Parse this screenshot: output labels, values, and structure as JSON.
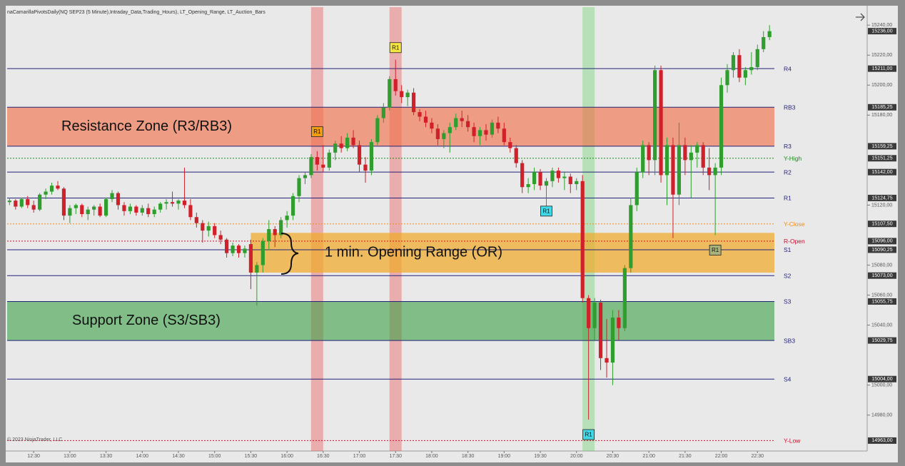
{
  "chart_data": {
    "type": "candlestick",
    "header": "naCamarillaPivotsDaily(NQ SEP23 (5 Minute),Intraday_Data,Trading_Hours), LT_Opening_Range, LT_Auction_Bars",
    "copyright": "© 2023 NinjaTrader, LLC",
    "up_color": "#2f9e2f",
    "down_color": "#d0202a",
    "xlim": [
      "12:08",
      "23:58"
    ],
    "xticks": [
      "12:30",
      "13:00",
      "13:30",
      "14:00",
      "14:30",
      "15:00",
      "15:30",
      "16:00",
      "16:30",
      "17:00",
      "17:30",
      "18:00",
      "18:30",
      "19:00",
      "19:30",
      "20:00",
      "20:30",
      "21:00",
      "21:30",
      "22:00",
      "22:30"
    ],
    "ylim": [
      14957,
      15252
    ],
    "yticks": [
      {
        "value": 15240,
        "label": "15240,00"
      },
      {
        "value": 15220,
        "label": "15220,00"
      },
      {
        "value": 15200,
        "label": "15200,00"
      },
      {
        "value": 15180,
        "label": "15180,00"
      },
      {
        "value": 15120,
        "label": "15120,00"
      },
      {
        "value": 15080,
        "label": "15080,00"
      },
      {
        "value": 15060,
        "label": "15060,00"
      },
      {
        "value": 15040,
        "label": "15040,00"
      },
      {
        "value": 15000,
        "label": "15000,00"
      },
      {
        "value": 14980,
        "label": "14980,00"
      }
    ],
    "last_price": {
      "value": 15236,
      "label": "15236,00"
    },
    "levels": [
      {
        "name": "R4",
        "value": 15211,
        "label": "15211,00",
        "color": "#23237a",
        "dashed": false
      },
      {
        "name": "RB3",
        "value": 15185.25,
        "label": "15185,25",
        "color": "#23237a",
        "dashed": false
      },
      {
        "name": "R3",
        "value": 15159.25,
        "label": "15159,25",
        "color": "#23237a",
        "dashed": false
      },
      {
        "name": "Y-High",
        "value": 15151.25,
        "label": "15151,25",
        "color": "#1a8a1a",
        "dashed": true
      },
      {
        "name": "R2",
        "value": 15142,
        "label": "15142,00",
        "color": "#23237a",
        "dashed": false
      },
      {
        "name": "R1",
        "value": 15124.75,
        "label": "15124,75",
        "color": "#23237a",
        "dashed": false
      },
      {
        "name": "Y-Close",
        "value": 15107.5,
        "label": "15107,50",
        "color": "#f08c1a",
        "dashed": true
      },
      {
        "name": "R-Open",
        "value": 15096,
        "label": "15096,00",
        "color": "#c8102e",
        "dashed": true
      },
      {
        "name": "S1",
        "value": 15090.25,
        "label": "15090,25",
        "color": "#23237a",
        "dashed": false
      },
      {
        "name": "S2",
        "value": 15073,
        "label": "15073,00",
        "color": "#23237a",
        "dashed": false
      },
      {
        "name": "S3",
        "value": 15055.75,
        "label": "15055,75",
        "color": "#23237a",
        "dashed": false
      },
      {
        "name": "SB3",
        "value": 15029.75,
        "label": "15029,75",
        "color": "#23237a",
        "dashed": false
      },
      {
        "name": "S4",
        "value": 15004,
        "label": "15004,00",
        "color": "#23237a",
        "dashed": false
      },
      {
        "name": "Y-Low",
        "value": 14963,
        "label": "14963,00",
        "color": "#c8102e",
        "dashed": true
      }
    ],
    "zones": [
      {
        "label": "Resistance Zone (R3/RB3)",
        "from": 15159.25,
        "to": 15185.25,
        "color": "rgba(240,110,70,0.62)",
        "start": "12:08"
      },
      {
        "label": "1 min. Opening Range (OR)",
        "from": 15075,
        "to": 15101.5,
        "color": "rgba(240,170,40,0.72)",
        "start": "15:30"
      },
      {
        "label": "Support Zone (S3/SB3)",
        "from": 15029.75,
        "to": 15055.75,
        "color": "rgba(60,160,70,0.6)",
        "start": "12:08"
      }
    ],
    "bands": [
      {
        "x": "16:25",
        "color": "rgba(235,90,90,0.42)"
      },
      {
        "x": "17:30",
        "color": "rgba(235,90,90,0.42)"
      },
      {
        "x": "20:10",
        "color": "rgba(110,210,110,0.4)"
      }
    ],
    "signals": [
      {
        "x": "16:25",
        "price": 15169,
        "label": "R1",
        "color": "#f39c12"
      },
      {
        "x": "17:30",
        "price": 15225,
        "label": "R1",
        "color": "#f5e642"
      },
      {
        "x": "19:35",
        "price": 15116,
        "label": "R1",
        "color": "#3fd9e8"
      },
      {
        "x": "20:10",
        "price": 14967,
        "label": "R1",
        "color": "#3fd9e8"
      },
      {
        "x": "21:55",
        "price": 15090,
        "label": "R1",
        "color": "#a8b27a"
      }
    ],
    "x": [
      "12:10",
      "12:15",
      "12:20",
      "12:25",
      "12:30",
      "12:35",
      "12:40",
      "12:45",
      "12:50",
      "12:55",
      "13:00",
      "13:05",
      "13:10",
      "13:15",
      "13:20",
      "13:25",
      "13:30",
      "13:35",
      "13:40",
      "13:45",
      "13:50",
      "13:55",
      "14:00",
      "14:05",
      "14:10",
      "14:15",
      "14:20",
      "14:25",
      "14:30",
      "14:35",
      "14:40",
      "14:45",
      "14:50",
      "14:55",
      "15:00",
      "15:05",
      "15:10",
      "15:15",
      "15:20",
      "15:25",
      "15:30",
      "15:35",
      "15:40",
      "15:45",
      "15:50",
      "15:55",
      "16:00",
      "16:05",
      "16:10",
      "16:15",
      "16:20",
      "16:25",
      "16:30",
      "16:35",
      "16:40",
      "16:45",
      "16:50",
      "16:55",
      "17:00",
      "17:05",
      "17:10",
      "17:15",
      "17:20",
      "17:25",
      "17:30",
      "17:35",
      "17:40",
      "17:45",
      "17:50",
      "17:55",
      "18:00",
      "18:05",
      "18:10",
      "18:15",
      "18:20",
      "18:25",
      "18:30",
      "18:35",
      "18:40",
      "18:45",
      "18:50",
      "18:55",
      "19:00",
      "19:05",
      "19:10",
      "19:15",
      "19:20",
      "19:25",
      "19:30",
      "19:35",
      "19:40",
      "19:45",
      "19:50",
      "19:55",
      "20:00",
      "20:05",
      "20:10",
      "20:15",
      "20:20",
      "20:25",
      "20:30",
      "20:35",
      "20:40",
      "20:45",
      "20:50",
      "20:55",
      "21:00",
      "21:05",
      "21:10",
      "21:15",
      "21:20",
      "21:25",
      "21:30",
      "21:35",
      "21:40",
      "21:45",
      "21:50",
      "21:55",
      "22:00",
      "22:05",
      "22:10",
      "22:15",
      "22:20",
      "22:25",
      "22:30",
      "22:35",
      "22:40"
    ],
    "ohlc": [
      [
        15122,
        15125,
        15120,
        15123
      ],
      [
        15123,
        15124,
        15117,
        15119
      ],
      [
        15119,
        15125,
        15118,
        15124
      ],
      [
        15124,
        15126,
        15118,
        15120
      ],
      [
        15120,
        15123,
        15115,
        15117
      ],
      [
        15117,
        15128,
        15116,
        15127
      ],
      [
        15127,
        15131,
        15124,
        15129
      ],
      [
        15129,
        15135,
        15127,
        15133
      ],
      [
        15133,
        15136,
        15130,
        15131
      ],
      [
        15131,
        15132,
        15110,
        15113
      ],
      [
        15113,
        15120,
        15108,
        15118
      ],
      [
        15118,
        15121,
        15114,
        15120
      ],
      [
        15120,
        15121,
        15112,
        15114
      ],
      [
        15114,
        15119,
        15110,
        15117
      ],
      [
        15117,
        15120,
        15113,
        15119
      ],
      [
        15119,
        15121,
        15112,
        15113
      ],
      [
        15113,
        15125,
        15112,
        15124
      ],
      [
        15124,
        15130,
        15122,
        15128
      ],
      [
        15128,
        15129,
        15117,
        15120
      ],
      [
        15120,
        15122,
        15113,
        15116
      ],
      [
        15116,
        15121,
        15114,
        15119
      ],
      [
        15119,
        15120,
        15113,
        15115
      ],
      [
        15115,
        15120,
        15113,
        15118
      ],
      [
        15118,
        15121,
        15112,
        15114
      ],
      [
        15114,
        15119,
        15112,
        15117
      ],
      [
        15117,
        15122,
        15115,
        15121
      ],
      [
        15121,
        15124,
        15117,
        15122
      ],
      [
        15122,
        15129,
        15119,
        15121
      ],
      [
        15121,
        15124,
        15117,
        15123
      ],
      [
        15123,
        15145,
        15118,
        15120
      ],
      [
        15120,
        15124,
        15110,
        15112
      ],
      [
        15112,
        15115,
        15105,
        15108
      ],
      [
        15108,
        15110,
        15095,
        15103
      ],
      [
        15103,
        15109,
        15099,
        15106
      ],
      [
        15106,
        15108,
        15098,
        15100
      ],
      [
        15100,
        15103,
        15094,
        15097
      ],
      [
        15097,
        15098,
        15085,
        15088
      ],
      [
        15088,
        15095,
        15086,
        15093
      ],
      [
        15093,
        15094,
        15085,
        15088
      ],
      [
        15088,
        15093,
        15085,
        15091
      ],
      [
        15094,
        15097,
        15064,
        15075
      ],
      [
        15075,
        15082,
        15053,
        15080
      ],
      [
        15080,
        15098,
        15075,
        15096
      ],
      [
        15096,
        15110,
        15090,
        15104
      ],
      [
        15104,
        15106,
        15092,
        15100
      ],
      [
        15100,
        15112,
        15098,
        15110
      ],
      [
        15110,
        15116,
        15105,
        15113
      ],
      [
        15113,
        15128,
        15110,
        15126
      ],
      [
        15126,
        15140,
        15122,
        15138
      ],
      [
        15138,
        15142,
        15134,
        15140
      ],
      [
        15140,
        15154,
        15138,
        15152
      ],
      [
        15152,
        15156,
        15143,
        15147
      ],
      [
        15147,
        15160,
        15142,
        15145
      ],
      [
        15145,
        15157,
        15143,
        15155
      ],
      [
        15155,
        15163,
        15150,
        15161
      ],
      [
        15161,
        15166,
        15155,
        15158
      ],
      [
        15158,
        15168,
        15156,
        15165
      ],
      [
        15165,
        15170,
        15158,
        15160
      ],
      [
        15160,
        15163,
        15142,
        15147
      ],
      [
        15147,
        15152,
        15135,
        15143
      ],
      [
        15143,
        15164,
        15140,
        15162
      ],
      [
        15162,
        15180,
        15160,
        15178
      ],
      [
        15178,
        15188,
        15175,
        15185
      ],
      [
        15185,
        15206,
        15183,
        15204
      ],
      [
        15204,
        15217,
        15193,
        15196
      ],
      [
        15196,
        15200,
        15188,
        15192
      ],
      [
        15192,
        15197,
        15186,
        15195
      ],
      [
        15195,
        15198,
        15180,
        15182
      ],
      [
        15182,
        15184,
        15176,
        15179
      ],
      [
        15179,
        15183,
        15172,
        15175
      ],
      [
        15175,
        15178,
        15168,
        15171
      ],
      [
        15171,
        15174,
        15160,
        15164
      ],
      [
        15164,
        15170,
        15158,
        15168
      ],
      [
        15168,
        15175,
        15155,
        15172
      ],
      [
        15172,
        15181,
        15170,
        15178
      ],
      [
        15178,
        15183,
        15172,
        15176
      ],
      [
        15176,
        15180,
        15169,
        15172
      ],
      [
        15172,
        15175,
        15162,
        15166
      ],
      [
        15166,
        15172,
        15160,
        15170
      ],
      [
        15170,
        15174,
        15163,
        15167
      ],
      [
        15167,
        15177,
        15165,
        15175
      ],
      [
        15175,
        15179,
        15168,
        15171
      ],
      [
        15171,
        15175,
        15160,
        15162
      ],
      [
        15162,
        15165,
        15155,
        15158
      ],
      [
        15158,
        15160,
        15145,
        15148
      ],
      [
        15148,
        15150,
        15128,
        15132
      ],
      [
        15132,
        15138,
        15128,
        15134
      ],
      [
        15134,
        15145,
        15130,
        15142
      ],
      [
        15142,
        15144,
        15130,
        15133
      ],
      [
        15133,
        15138,
        15117,
        15136
      ],
      [
        15136,
        15145,
        15132,
        15143
      ],
      [
        15143,
        15145,
        15135,
        15138
      ],
      [
        15138,
        15142,
        15130,
        15139
      ],
      [
        15139,
        15141,
        15128,
        15134
      ],
      [
        15134,
        15138,
        15130,
        15136
      ],
      [
        15136,
        15140,
        15055,
        15058
      ],
      [
        15058,
        15060,
        14977,
        15038
      ],
      [
        15038,
        15058,
        15030,
        15055
      ],
      [
        15055,
        15057,
        15010,
        15018
      ],
      [
        15018,
        15044,
        15005,
        15015
      ],
      [
        15015,
        15050,
        15000,
        15045
      ],
      [
        15045,
        15050,
        15030,
        15038
      ],
      [
        15038,
        15080,
        15036,
        15078
      ],
      [
        15078,
        15125,
        15075,
        15120
      ],
      [
        15120,
        15145,
        15116,
        15142
      ],
      [
        15142,
        15163,
        15138,
        15160
      ],
      [
        15160,
        15162,
        15140,
        15150
      ],
      [
        15150,
        15213,
        15140,
        15210
      ],
      [
        15210,
        15213,
        15135,
        15140
      ],
      [
        15140,
        15165,
        15120,
        15160
      ],
      [
        15160,
        15165,
        15098,
        15127
      ],
      [
        15127,
        15175,
        15120,
        15160
      ],
      [
        15160,
        15165,
        15140,
        15150
      ],
      [
        15150,
        15160,
        15125,
        15155
      ],
      [
        15155,
        15162,
        15145,
        15160
      ],
      [
        15160,
        15162,
        15140,
        15145
      ],
      [
        15145,
        15158,
        15130,
        15140
      ],
      [
        15140,
        15148,
        15100,
        15145
      ],
      [
        15145,
        15205,
        15140,
        15200
      ],
      [
        15200,
        15214,
        15195,
        15210
      ],
      [
        15210,
        15222,
        15205,
        15220
      ],
      [
        15220,
        15224,
        15202,
        15205
      ],
      [
        15205,
        15212,
        15200,
        15210
      ],
      [
        15210,
        15222,
        15207,
        15212
      ],
      [
        15212,
        15227,
        15210,
        15224
      ],
      [
        15224,
        15236,
        15222,
        15232
      ],
      [
        15232,
        15240,
        15230,
        15236
      ]
    ]
  }
}
